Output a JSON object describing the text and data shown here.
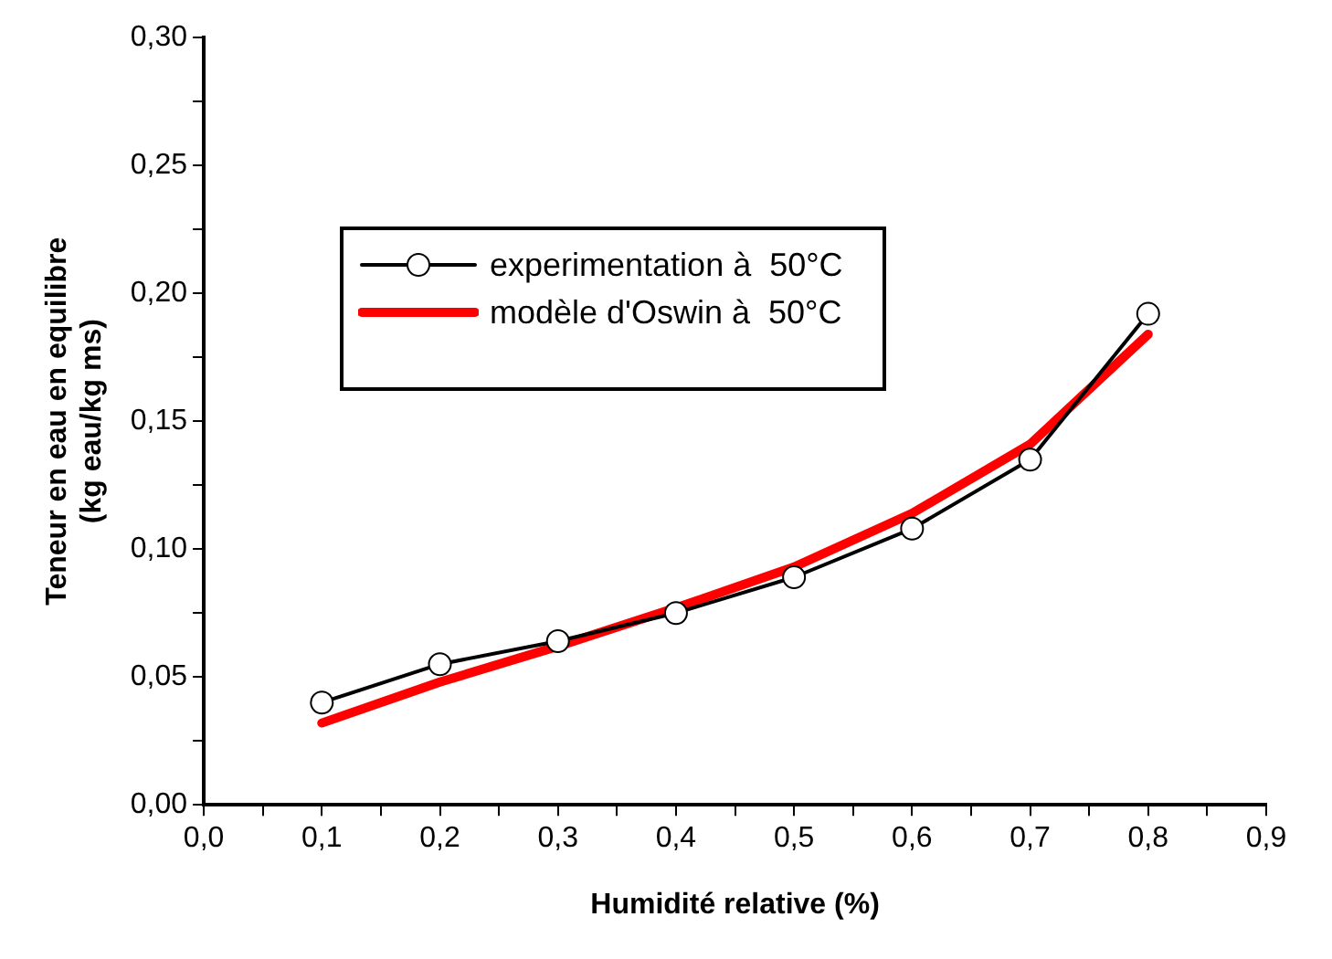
{
  "chart_data": {
    "type": "line",
    "xlabel": "Humidité relative (%)",
    "ylabel": "Teneur en eau en equilibre\n(kg eau/kg ms)",
    "x": [
      0.1,
      0.2,
      0.3,
      0.4,
      0.5,
      0.6,
      0.7,
      0.8
    ],
    "series": [
      {
        "name": "experimentation à  50°C",
        "color": "#000000",
        "marker": "circle",
        "values": [
          0.04,
          0.055,
          0.064,
          0.075,
          0.089,
          0.108,
          0.135,
          0.192
        ]
      },
      {
        "name": "modèle d'Oswin à  50°C",
        "color": "#ff0000",
        "marker": "none",
        "values": [
          0.032,
          0.048,
          0.062,
          0.077,
          0.093,
          0.114,
          0.141,
          0.184
        ]
      }
    ],
    "xlim": [
      0,
      0.9
    ],
    "xticks": [
      {
        "value": 0,
        "label": "0,0"
      },
      {
        "value": 0.05,
        "label": null
      },
      {
        "value": 0.1,
        "label": "0,1"
      },
      {
        "value": 0.15,
        "label": null
      },
      {
        "value": 0.2,
        "label": "0,2"
      },
      {
        "value": 0.25,
        "label": null
      },
      {
        "value": 0.3,
        "label": "0,3"
      },
      {
        "value": 0.35,
        "label": null
      },
      {
        "value": 0.4,
        "label": "0,4"
      },
      {
        "value": 0.45,
        "label": null
      },
      {
        "value": 0.5,
        "label": "0,5"
      },
      {
        "value": 0.55,
        "label": null
      },
      {
        "value": 0.6,
        "label": "0,6"
      },
      {
        "value": 0.65,
        "label": null
      },
      {
        "value": 0.7,
        "label": "0,7"
      },
      {
        "value": 0.75,
        "label": null
      },
      {
        "value": 0.8,
        "label": "0,8"
      },
      {
        "value": 0.85,
        "label": null
      },
      {
        "value": 0.9,
        "label": "0,9"
      }
    ],
    "ylim": [
      0,
      0.3
    ],
    "yticks": [
      {
        "value": 0,
        "label": "0,00"
      },
      {
        "value": 0.025,
        "label": null
      },
      {
        "value": 0.05,
        "label": "0,05"
      },
      {
        "value": 0.075,
        "label": null
      },
      {
        "value": 0.1,
        "label": "0,10"
      },
      {
        "value": 0.125,
        "label": null
      },
      {
        "value": 0.15,
        "label": "0,15"
      },
      {
        "value": 0.175,
        "label": null
      },
      {
        "value": 0.2,
        "label": "0,20"
      },
      {
        "value": 0.225,
        "label": null
      },
      {
        "value": 0.25,
        "label": "0,25"
      },
      {
        "value": 0.275,
        "label": null
      },
      {
        "value": 0.3,
        "label": "0,30"
      }
    ],
    "grid": false,
    "legend": "top left",
    "line_style": "solid"
  }
}
